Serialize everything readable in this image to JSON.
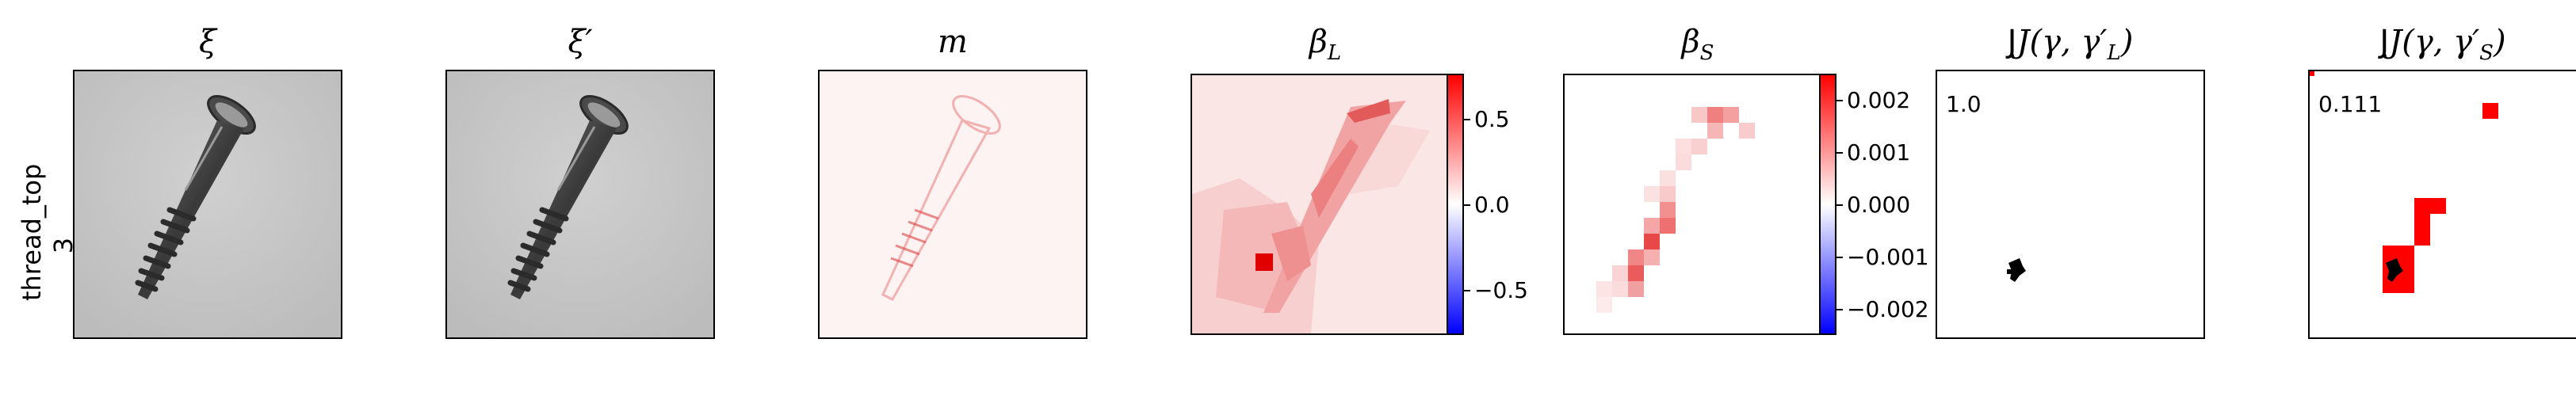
{
  "row_label": "thread_top\n3",
  "row_label_line1": "thread_top",
  "row_label_line2": "3",
  "titles": {
    "xi": "ξ",
    "xi_prime": "ξ′",
    "m": "m",
    "beta_L": "β",
    "beta_L_sub": "L",
    "beta_S": "β",
    "beta_S_sub": "S",
    "j_L": "J(γ, γ′",
    "j_L_sub": "L",
    "j_S": "J(γ, γ′",
    "j_S_sub": "S",
    "close": ")"
  },
  "colorbar_L": {
    "ticks": [
      "0.5",
      "0.0",
      "−0.5"
    ],
    "values": [
      0.5,
      0.0,
      -0.5
    ],
    "range": [
      -0.75,
      0.75
    ]
  },
  "colorbar_S": {
    "ticks": [
      "0.002",
      "0.001",
      "0.000",
      "−0.001",
      "−0.002"
    ],
    "values": [
      0.002,
      0.001,
      0.0,
      -0.001,
      -0.002
    ],
    "range": [
      -0.0025,
      0.0025
    ]
  },
  "jaccard": {
    "L": "1.0",
    "S": "0.111"
  },
  "colors": {
    "positive": "#ff0000",
    "negative": "#0000ff",
    "background": "#c8c8c8"
  }
}
